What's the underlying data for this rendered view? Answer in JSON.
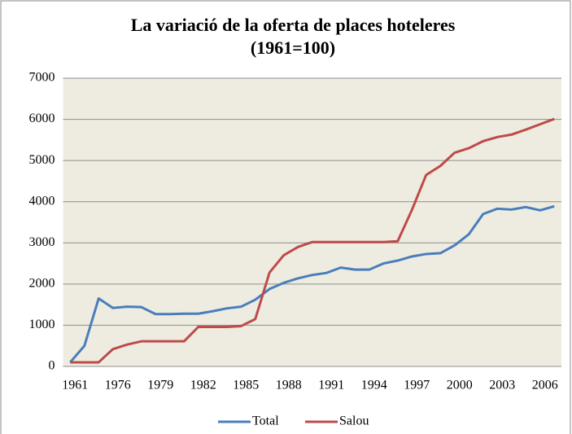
{
  "chart_data": {
    "type": "line",
    "title": "La variació de la oferta de places hoteleres",
    "subtitle": "(1961=100)",
    "categories": [
      "1961",
      null,
      null,
      "1976",
      null,
      null,
      "1979",
      null,
      null,
      "1982",
      null,
      null,
      "1985",
      null,
      null,
      "1988",
      null,
      null,
      "1991",
      null,
      null,
      "1994",
      null,
      null,
      "1997",
      null,
      null,
      "2000",
      null,
      null,
      "2003",
      null,
      null,
      "2006",
      null
    ],
    "series": [
      {
        "name": "Total",
        "color": "#4a7ebb",
        "values": [
          100,
          500,
          1650,
          1420,
          1450,
          1440,
          1270,
          1270,
          1280,
          1280,
          1340,
          1410,
          1450,
          1620,
          1880,
          2030,
          2140,
          2220,
          2270,
          2400,
          2350,
          2350,
          2500,
          2570,
          2670,
          2730,
          2750,
          2940,
          3210,
          3700,
          3830,
          3810,
          3870,
          3790,
          3890
        ]
      },
      {
        "name": "Salou",
        "color": "#be4b48",
        "values": [
          100,
          100,
          100,
          420,
          530,
          610,
          610,
          610,
          610,
          960,
          960,
          960,
          980,
          1150,
          2280,
          2700,
          2900,
          3020,
          3020,
          3020,
          3020,
          3020,
          3020,
          3040,
          3800,
          4650,
          4870,
          5190,
          5300,
          5470,
          5570,
          5630,
          5750,
          5880,
          6010
        ]
      }
    ],
    "ylim": [
      0,
      7000
    ],
    "yticks": [
      0,
      1000,
      2000,
      3000,
      4000,
      5000,
      6000,
      7000
    ],
    "grid": true,
    "legend": "bottom"
  }
}
